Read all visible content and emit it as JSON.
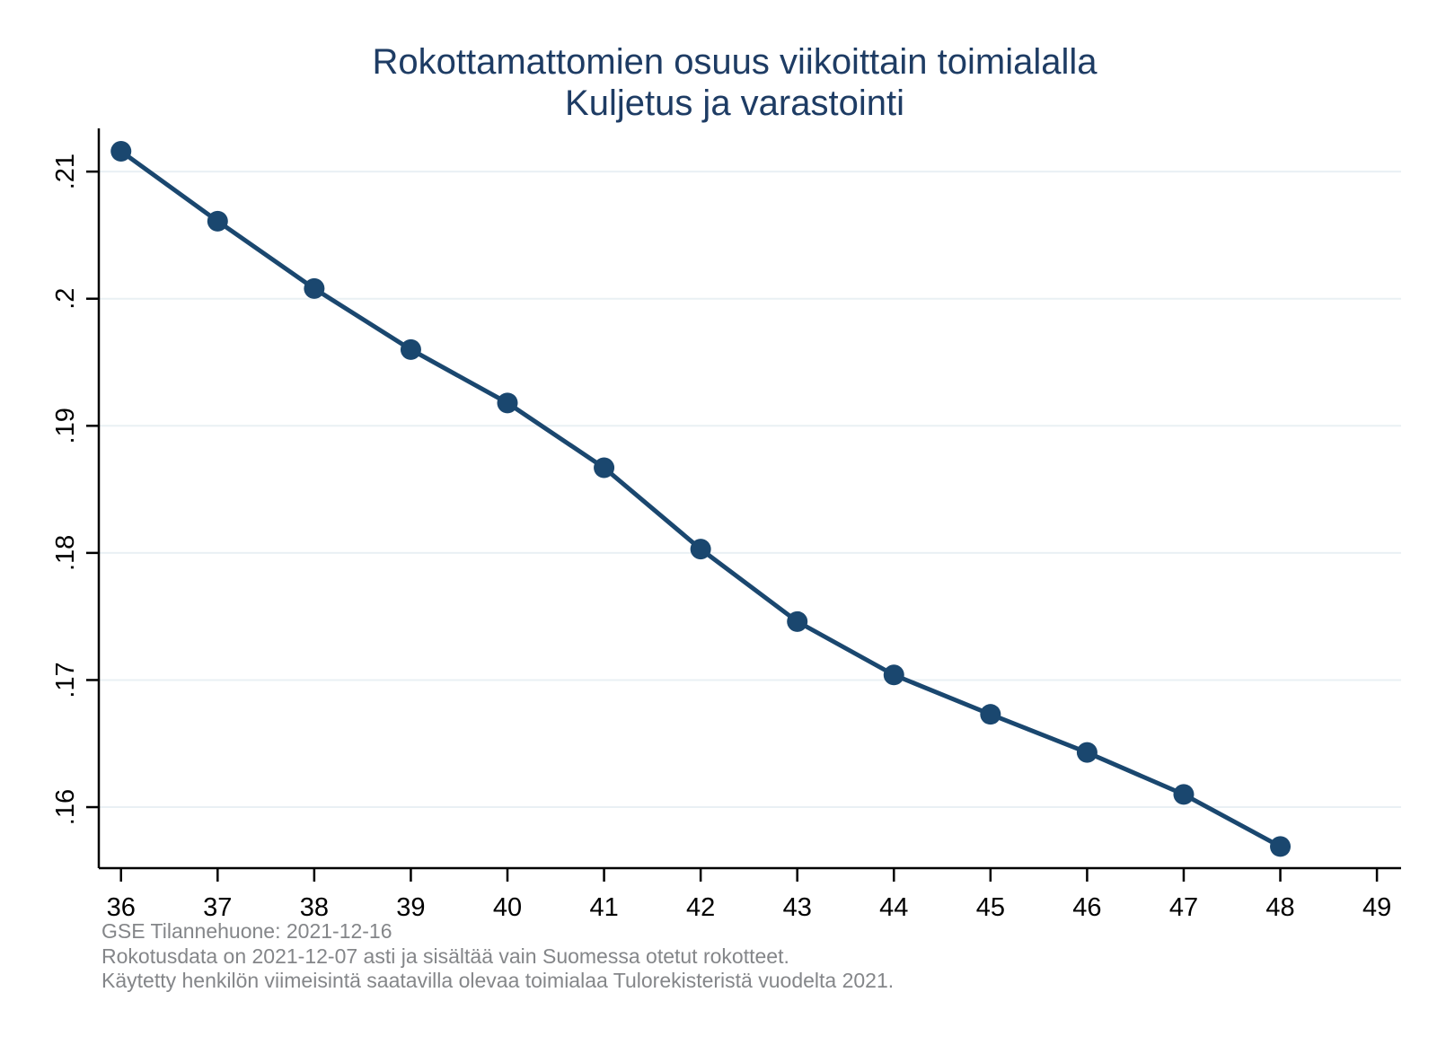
{
  "title": {
    "line1": "Rokottamattomien osuus viikoittain toimialalla",
    "line2": "Kuljetus ja varastointi"
  },
  "footer": {
    "line1": "GSE Tilannehuone: 2021-12-16",
    "line2": "Rokotusdata on 2021-12-07 asti ja sisältää vain Suomessa otetut rokotteet.",
    "line3": "Käytetty henkilön viimeisintä saatavilla olevaa toimialaa Tulorekisteristä vuodelta 2021."
  },
  "colors": {
    "series": "#1a476f",
    "title_text": "#1e3c64",
    "grid": "#e9f0f4",
    "axis": "#000000",
    "tick_label": "#000000",
    "footer_text": "#848689",
    "background": "#ffffff"
  },
  "chart_data": {
    "type": "line",
    "title": "Rokottamattomien osuus viikoittain toimialalla Kuljetus ja varastointi",
    "xlabel": "",
    "ylabel": "",
    "series_name": "Rokottamattomien osuus",
    "x": [
      36,
      37,
      38,
      39,
      40,
      41,
      42,
      43,
      44,
      45,
      46,
      47,
      48
    ],
    "values": [
      0.2116,
      0.2061,
      0.2008,
      0.196,
      0.1918,
      0.1867,
      0.1803,
      0.1746,
      0.1704,
      0.1673,
      0.1643,
      0.161,
      0.1569
    ],
    "x_ticks": {
      "values": [
        36,
        37,
        38,
        39,
        40,
        41,
        42,
        43,
        44,
        45,
        46,
        47,
        48,
        49
      ],
      "labels": [
        "36",
        "37",
        "38",
        "39",
        "40",
        "41",
        "42",
        "43",
        "44",
        "45",
        "46",
        "47",
        "48",
        "49"
      ]
    },
    "y_ticks": {
      "values": [
        0.21,
        0.2,
        0.19,
        0.18,
        0.17,
        0.16
      ],
      "labels": [
        ".21",
        ".2",
        ".19",
        ".18",
        ".17",
        ".16"
      ]
    },
    "xlim": [
      35.77,
      49.25
    ],
    "ylim": [
      0.1552,
      0.2134
    ],
    "grid": "horizontal",
    "legend": "none",
    "marker": "circle"
  }
}
